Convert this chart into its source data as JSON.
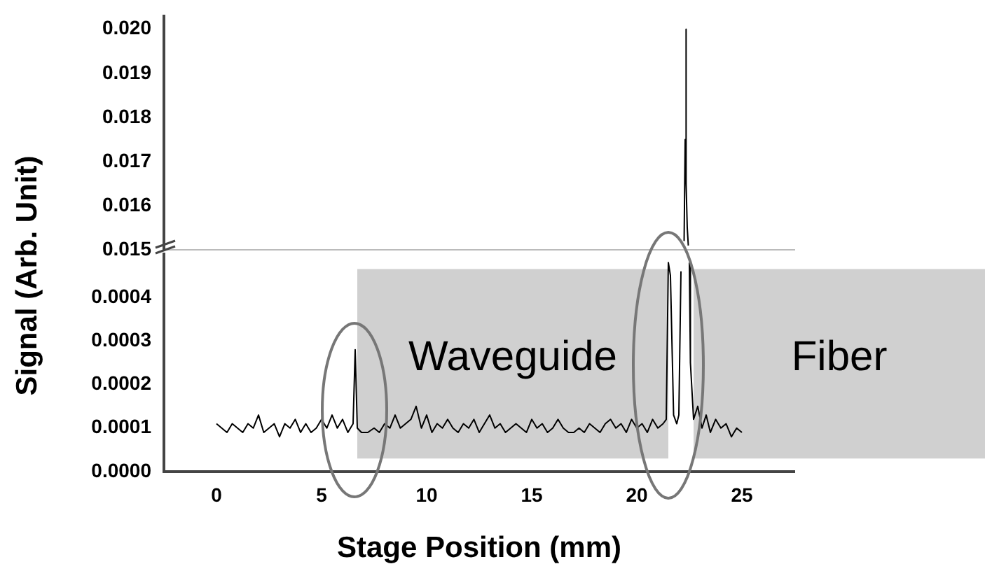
{
  "chart_data": [
    {
      "type": "line",
      "ylabel": "Signal (Arb. Unit)",
      "x": [
        22.25,
        22.3,
        22.33,
        22.36,
        22.4,
        22.45
      ],
      "values": [
        0.0152,
        0.0175,
        0.02,
        0.0165,
        0.0155,
        0.0151
      ],
      "color": "#000000",
      "xlim": [
        -2.5,
        27.5
      ],
      "ylim": [
        0.015,
        0.0203
      ],
      "yticks": [
        0.015,
        0.016,
        0.017,
        0.018,
        0.019,
        {
          "value": 0.02,
          "label": "0.020"
        }
      ],
      "tick_labels": "y"
    },
    {
      "type": "line",
      "xlabel": "Stage Position (mm)",
      "x": [
        0,
        0.25,
        0.5,
        0.75,
        1,
        1.25,
        1.5,
        1.75,
        2,
        2.25,
        2.5,
        2.75,
        3,
        3.25,
        3.5,
        3.75,
        4,
        4.25,
        4.5,
        4.75,
        5,
        5.25,
        5.5,
        5.75,
        6,
        6.25,
        6.5,
        6.6,
        6.7,
        6.9,
        7.2,
        7.5,
        7.75,
        8,
        8.25,
        8.5,
        8.75,
        9,
        9.25,
        9.5,
        9.75,
        10,
        10.25,
        10.5,
        10.75,
        11,
        11.25,
        11.5,
        11.75,
        12,
        12.25,
        12.5,
        12.75,
        13,
        13.25,
        13.5,
        13.75,
        14,
        14.25,
        14.5,
        14.75,
        15,
        15.25,
        15.5,
        15.75,
        16,
        16.25,
        16.5,
        16.75,
        17,
        17.25,
        17.5,
        17.75,
        18,
        18.25,
        18.5,
        18.75,
        19,
        19.25,
        19.5,
        19.75,
        20,
        20.25,
        20.5,
        20.75,
        21,
        21.25,
        21.4,
        21.5,
        21.6,
        21.75,
        21.9,
        22,
        22.1,
        22.3,
        22.5,
        22.55,
        22.7,
        22.9,
        23.1,
        23.3,
        23.5,
        23.75,
        24,
        24.25,
        24.5,
        24.75,
        25
      ],
      "values": [
        0.00011,
        0.0001,
        9e-05,
        0.00011,
        0.0001,
        9e-05,
        0.00011,
        0.0001,
        0.00013,
        9e-05,
        0.0001,
        0.00011,
        8e-05,
        0.00011,
        0.0001,
        0.00012,
        9e-05,
        0.00011,
        9e-05,
        0.0001,
        0.00012,
        0.0001,
        0.00013,
        0.0001,
        0.00012,
        9e-05,
        0.00011,
        0.00028,
        0.0001,
        9e-05,
        9e-05,
        0.0001,
        9e-05,
        0.00011,
        0.0001,
        0.00013,
        0.0001,
        0.00011,
        0.00012,
        0.00015,
        0.0001,
        0.00013,
        9e-05,
        0.00011,
        0.0001,
        0.00012,
        0.0001,
        9e-05,
        0.00011,
        0.0001,
        0.00012,
        9e-05,
        0.00011,
        0.00013,
        0.0001,
        0.00011,
        9e-05,
        0.0001,
        0.00011,
        0.0001,
        9e-05,
        0.00012,
        0.0001,
        0.00011,
        9e-05,
        0.0001,
        0.00012,
        0.0001,
        9e-05,
        9e-05,
        0.0001,
        9e-05,
        0.00011,
        0.0001,
        9e-05,
        0.00011,
        0.00012,
        0.0001,
        0.00011,
        9e-05,
        0.00012,
        0.0001,
        0.00011,
        9e-05,
        0.00012,
        0.0001,
        0.00011,
        0.00012,
        0.00048,
        0.00045,
        0.00013,
        0.00011,
        0.00013,
        0.00046,
        null,
        0.00048,
        0.00025,
        0.00012,
        0.00015,
        0.0001,
        0.00013,
        9e-05,
        0.00012,
        0.0001,
        0.00011,
        8e-05,
        0.0001,
        9e-05
      ],
      "color": "#000000",
      "xlim": [
        -2.5,
        27.5
      ],
      "xticks": [
        0,
        5,
        10,
        15,
        20,
        25
      ],
      "ylim": [
        0,
        0.0005
      ],
      "yticks": [
        {
          "value": 0,
          "label": "0.0000"
        },
        0.0001,
        0.0002,
        0.0003,
        0.0004
      ],
      "bands": [
        {
          "axis": "x",
          "from": 6.7,
          "to": 21.5,
          "label": "Waveguide",
          "color": "#d0d0d0"
        },
        {
          "axis": "x",
          "from": 22.7,
          "to": 27.5,
          "label": "Fiber",
          "color": "#d0d0d0"
        }
      ]
    }
  ]
}
